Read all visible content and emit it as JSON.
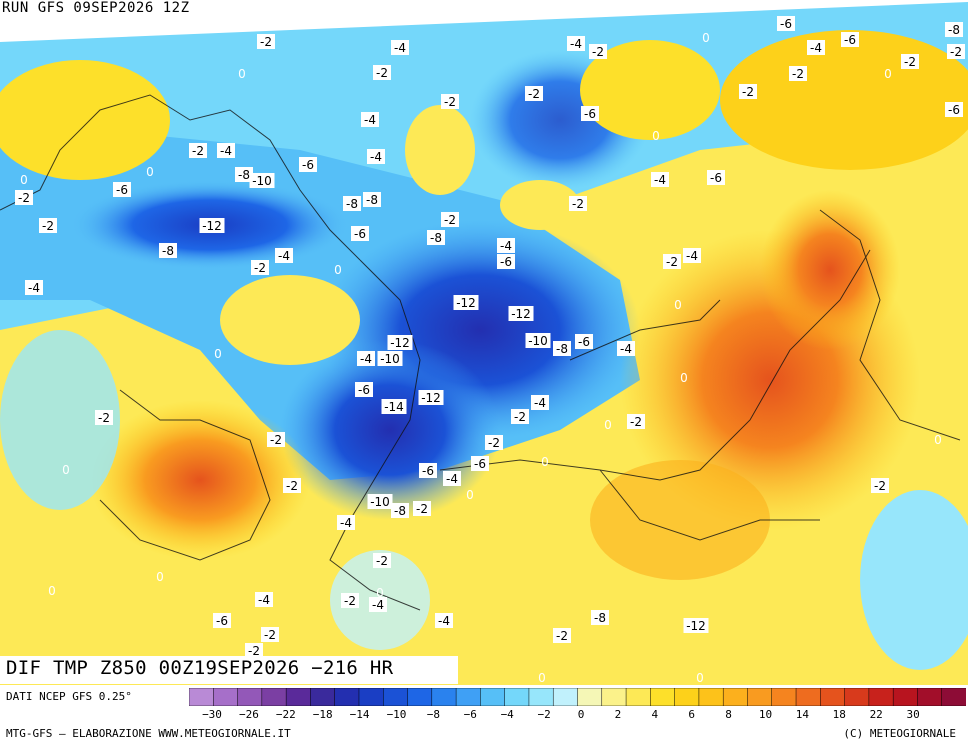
{
  "header": {
    "run_label": "RUN GFS 09SEP2026 12Z"
  },
  "footer": {
    "title": "DIF TMP Z850 00Z19SEP2026 −216 HR",
    "data_source": "DATI NCEP GFS 0.25°",
    "credit": "MTG-GFS — ELABORAZIONE WWW.METEOGIORNALE.IT",
    "copyright": "(C) METEOGIORNALE"
  },
  "legend": {
    "tick_labels": [
      "−30",
      "−26",
      "−22",
      "−18",
      "−14",
      "−10",
      "−8",
      "−6",
      "−4",
      "−2",
      "0",
      "2",
      "4",
      "6",
      "8",
      "10",
      "14",
      "18",
      "22",
      "30"
    ],
    "colors": [
      "#b98ad6",
      "#a66fc9",
      "#9358b8",
      "#7b3fa3",
      "#5a2a9a",
      "#3a2a9c",
      "#232fb0",
      "#1a3ec4",
      "#1b52d6",
      "#1e66e6",
      "#2a82ee",
      "#3fa0f5",
      "#56bff7",
      "#74d7fa",
      "#97e6fb",
      "#c1f1fc",
      "#f5f7b6",
      "#fbf28a",
      "#fde956",
      "#fde02a",
      "#fdd11a",
      "#fdc21a",
      "#fcb01d",
      "#f99b20",
      "#f5841f",
      "#ee6c1f",
      "#e5531d",
      "#d83a1c",
      "#c8221c",
      "#b8141f",
      "#a20e2a",
      "#8d0c36"
    ]
  },
  "map_labels": [
    {
      "t": "-2"
    },
    {
      "t": "-4"
    },
    {
      "t": "0"
    },
    {
      "t": "-2"
    },
    {
      "t": "-4"
    },
    {
      "t": "-2"
    },
    {
      "t": "0"
    },
    {
      "t": "-6"
    },
    {
      "t": "-4"
    },
    {
      "t": "-6"
    },
    {
      "t": "-8"
    },
    {
      "t": "-2"
    },
    {
      "t": "-2"
    },
    {
      "t": "-2"
    },
    {
      "t": "-2"
    },
    {
      "t": "-6"
    },
    {
      "t": "0"
    },
    {
      "t": "-2"
    },
    {
      "t": "0"
    },
    {
      "t": "-2"
    },
    {
      "t": "-4"
    },
    {
      "t": "-6"
    },
    {
      "t": "-8"
    },
    {
      "t": "-10"
    },
    {
      "t": "-4"
    },
    {
      "t": "-6"
    },
    {
      "t": "-4"
    },
    {
      "t": "0"
    },
    {
      "t": "-2"
    },
    {
      "t": "0"
    },
    {
      "t": "-6"
    },
    {
      "t": "-2"
    },
    {
      "t": "-8"
    },
    {
      "t": "-8"
    },
    {
      "t": "-12"
    },
    {
      "t": "-2"
    },
    {
      "t": "-6"
    },
    {
      "t": "-8"
    },
    {
      "t": "-2"
    },
    {
      "t": "-4"
    },
    {
      "t": "-6"
    },
    {
      "t": "-2"
    },
    {
      "t": "-4"
    },
    {
      "t": "-8"
    },
    {
      "t": "-2"
    },
    {
      "t": "-4"
    },
    {
      "t": "0"
    },
    {
      "t": "-4"
    },
    {
      "t": "-2"
    },
    {
      "t": "-6"
    },
    {
      "t": "-4"
    },
    {
      "t": "0"
    },
    {
      "t": "-12"
    },
    {
      "t": "-12"
    },
    {
      "t": "-10"
    },
    {
      "t": "-8"
    },
    {
      "t": "-6"
    },
    {
      "t": "-4"
    },
    {
      "t": "-12"
    },
    {
      "t": "-4"
    },
    {
      "t": "-10"
    },
    {
      "t": "0"
    },
    {
      "t": "-6"
    },
    {
      "t": "-14"
    },
    {
      "t": "-12"
    },
    {
      "t": "-4"
    },
    {
      "t": "-2"
    },
    {
      "t": "0"
    },
    {
      "t": "-2"
    },
    {
      "t": "-2"
    },
    {
      "t": "-6"
    },
    {
      "t": "-6"
    },
    {
      "t": "-4"
    },
    {
      "t": "0"
    },
    {
      "t": "-10"
    },
    {
      "t": "-8"
    },
    {
      "t": "-2"
    },
    {
      "t": "-4"
    },
    {
      "t": "0"
    },
    {
      "t": "0"
    },
    {
      "t": "-2"
    },
    {
      "t": "-2"
    },
    {
      "t": "0"
    },
    {
      "t": "-2"
    },
    {
      "t": "-2"
    },
    {
      "t": "0"
    },
    {
      "t": "0"
    },
    {
      "t": "-2"
    },
    {
      "t": "0"
    },
    {
      "t": "-4"
    },
    {
      "t": "-2"
    },
    {
      "t": "0"
    },
    {
      "t": "-4"
    },
    {
      "t": "-6"
    },
    {
      "t": "-2"
    },
    {
      "t": "-4"
    },
    {
      "t": "-2"
    },
    {
      "t": "-8"
    },
    {
      "t": "-12"
    },
    {
      "t": "-2"
    },
    {
      "t": "0"
    },
    {
      "t": "0"
    },
    {
      "t": "0"
    },
    {
      "t": "0"
    },
    {
      "t": "-2"
    },
    {
      "t": "-2"
    },
    {
      "t": "0"
    }
  ]
}
